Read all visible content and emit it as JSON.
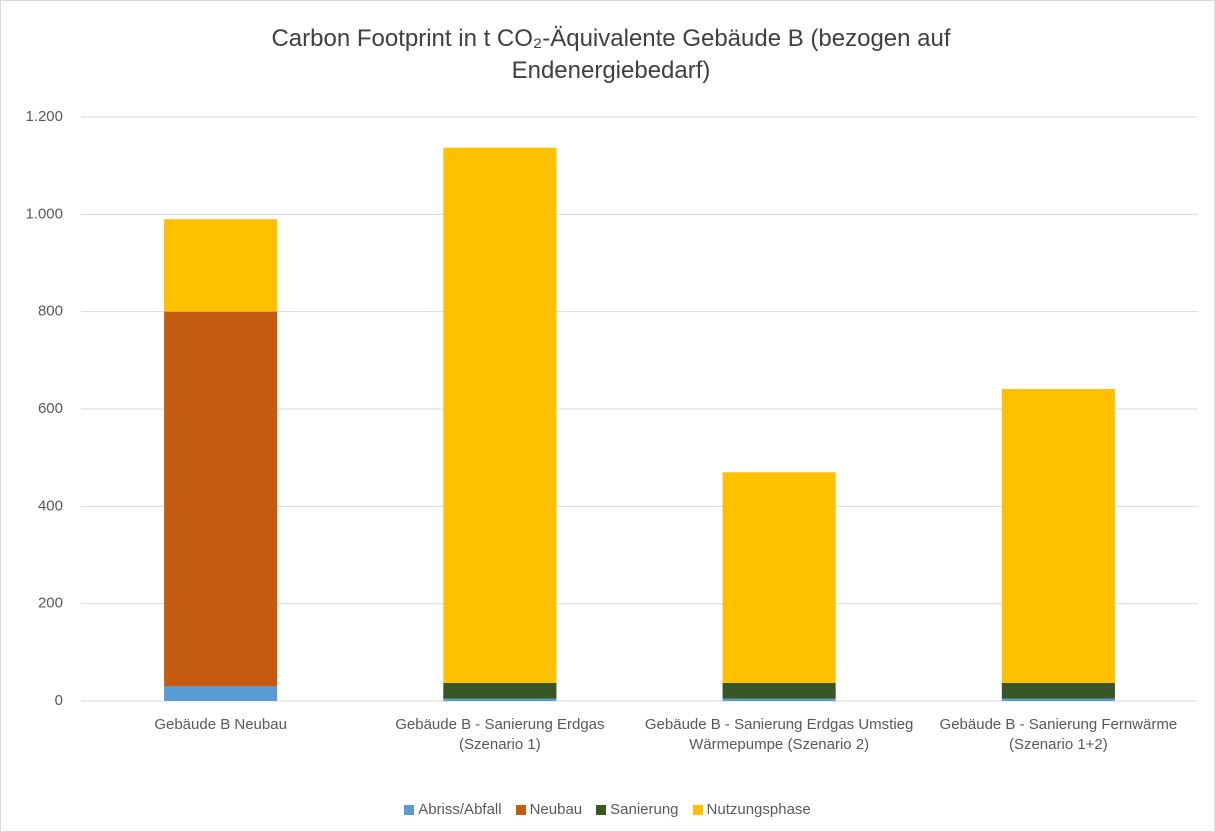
{
  "chart_data": {
    "type": "stacked_bar",
    "title": "Carbon Footprint in t CO₂-Äquivalente Gebäude B (bezogen auf Endenergiebedarf)",
    "categories": [
      "Gebäude B Neubau",
      "Gebäude B - Sanierung Erdgas (Szenario 1)",
      "Gebäude B - Sanierung Erdgas Umstieg Wärmepumpe (Szenario 2)",
      "Gebäude B - Sanierung Fernwärme (Szenario 1+2)"
    ],
    "series": [
      {
        "name": "Abriss/Abfall",
        "color": "#5b9bd5",
        "values": [
          30,
          5,
          5,
          5
        ]
      },
      {
        "name": "Neubau",
        "color": "#c55a11",
        "values": [
          770,
          0,
          0,
          0
        ]
      },
      {
        "name": "Sanierung",
        "color": "#375623",
        "values": [
          0,
          32,
          32,
          32
        ]
      },
      {
        "name": "Nutzungsphase",
        "color": "#ffc000",
        "values": [
          190,
          1100,
          433,
          604
        ]
      }
    ],
    "ylim": [
      0,
      1200
    ],
    "yticks": [
      0,
      200,
      400,
      600,
      800,
      {
        "value": 1000,
        "label": "1.000"
      },
      {
        "value": 1200,
        "label": "1.200"
      }
    ],
    "grid": true,
    "legend": "bottom"
  }
}
